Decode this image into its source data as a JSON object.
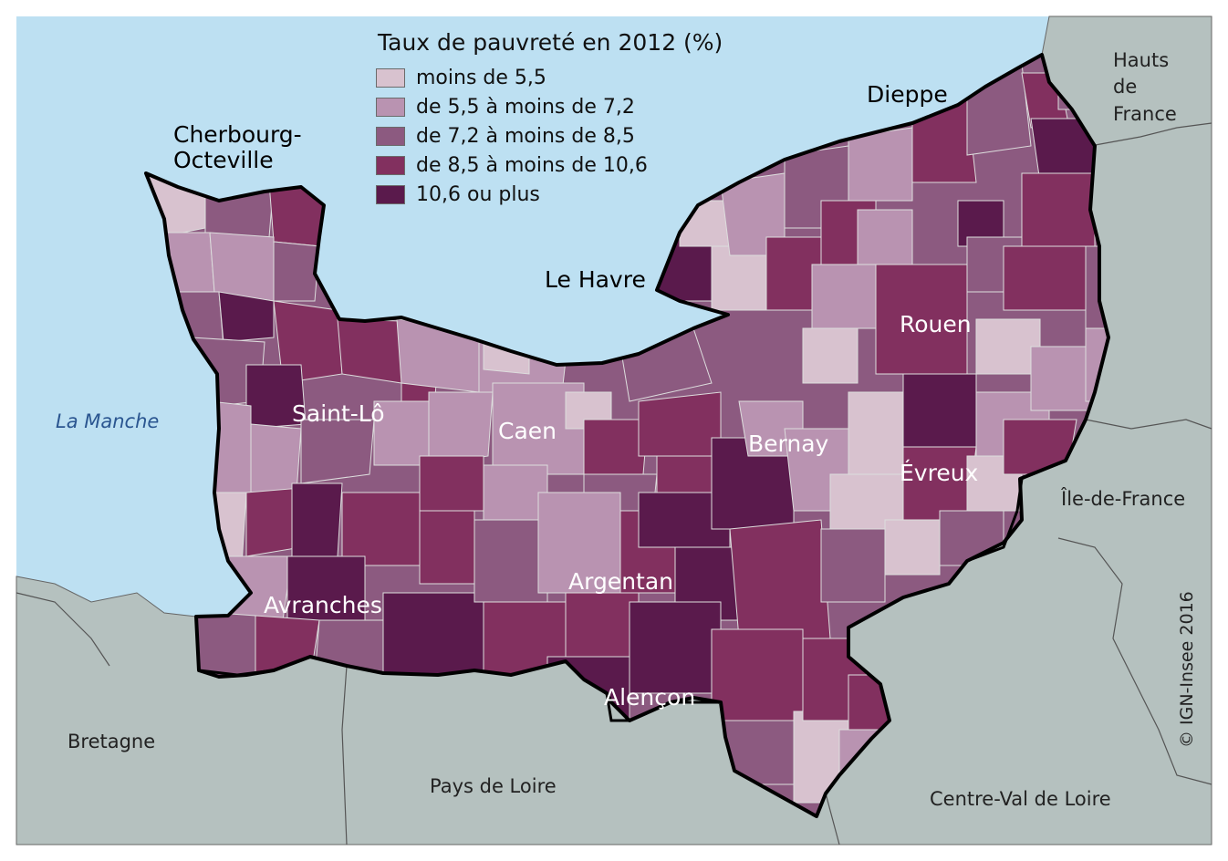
{
  "legend": {
    "title": "Taux de pauvreté en 2012 (%)",
    "classes": [
      {
        "label": "moins de 5,5",
        "color": "#d8c2cf"
      },
      {
        "label": "de 5,5 à moins de 7,2",
        "color": "#b993b1"
      },
      {
        "label": "de 7,2 à moins de 8,5",
        "color": "#8c5a80"
      },
      {
        "label": "de 8,5 à moins de 10,6",
        "color": "#82305f"
      },
      {
        "label": "10,6 ou plus",
        "color": "#5a1a4c"
      }
    ]
  },
  "colors": {
    "sea": "#bde0f2",
    "outside_land": "#b5c1bf",
    "border": "#000000",
    "inner_border": "#d9d9d9"
  },
  "cities": {
    "cherbourg": "Cherbourg-\nOcteville",
    "dieppe": "Dieppe",
    "le_havre": "Le Havre",
    "rouen": "Rouen",
    "saint_lo": "Saint-Lô",
    "caen": "Caen",
    "bernay": "Bernay",
    "evreux": "Évreux",
    "argentan": "Argentan",
    "avranches": "Avranches",
    "alencon": "Alençon"
  },
  "regions": {
    "hauts_de_france": "Hauts\nde\nFrance",
    "ile_de_france": "Île-de-France",
    "bretagne": "Bretagne",
    "pays_de_loire": "Pays de Loire",
    "centre_val_de_loire": "Centre-Val de Loire"
  },
  "sea_label": "La Manche",
  "copyright": "© IGN-Insee 2016"
}
